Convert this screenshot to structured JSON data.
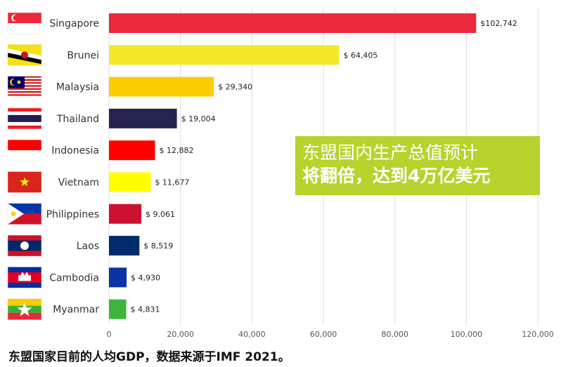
{
  "chart_data": {
    "type": "bar",
    "orientation": "horizontal",
    "categories": [
      "Singapore",
      "Brunei",
      "Malaysia",
      "Thailand",
      "Indonesia",
      "Vietnam",
      "Philippines",
      "Laos",
      "Cambodia",
      "Myanmar"
    ],
    "values": [
      102742,
      64405,
      29340,
      19004,
      12882,
      11677,
      9061,
      8519,
      4930,
      4831
    ],
    "value_labels": [
      "$102,742",
      "$ 64,405",
      "$ 29,340",
      "$ 19,004",
      "$ 12,882",
      "$ 11,677",
      "$ 9,061",
      "$ 8,519",
      "$ 4,930",
      "$ 4,831"
    ],
    "bar_colors": [
      "#ec2a3c",
      "#f5e82a",
      "#fccd06",
      "#27234f",
      "#ff0000",
      "#ffff00",
      "#cc1230",
      "#002c6b",
      "#0a33a5",
      "#3eb43e"
    ],
    "flag_icons": [
      "singapore-flag-icon",
      "brunei-flag-icon",
      "malaysia-flag-icon",
      "thailand-flag-icon",
      "indonesia-flag-icon",
      "vietnam-flag-icon",
      "philippines-flag-icon",
      "laos-flag-icon",
      "cambodia-flag-icon",
      "myanmar-flag-icon"
    ],
    "xticks": [
      0,
      20000,
      40000,
      60000,
      80000,
      100000,
      120000
    ],
    "xtick_labels": [
      "0",
      "20,000",
      "40,000",
      "60,000",
      "80,000",
      "100,000",
      "120,000"
    ],
    "xlim": [
      0,
      120000
    ],
    "grid": "vertical",
    "grid_color": "#dddddd",
    "title": "",
    "xlabel": "",
    "ylabel": ""
  },
  "callout": {
    "line1": "东盟国内生产总值预计",
    "line2": "将翻倍，达到4万亿美元",
    "color": "#b9d22d"
  },
  "caption": "东盟国家目前的人均GDP，数据来源于IMF 2021。"
}
